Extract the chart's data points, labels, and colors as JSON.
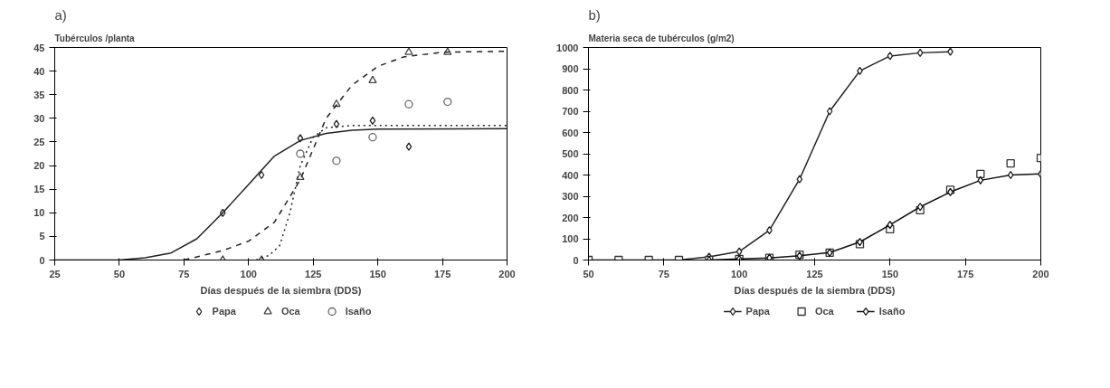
{
  "chart_data": [
    {
      "type": "scatter",
      "title": "a)",
      "ylabel": "Tubérculos /planta",
      "xlabel": "Días después de la siembra (DDS)",
      "xlim": [
        25,
        200
      ],
      "xticks": [
        25,
        50,
        75,
        100,
        125,
        150,
        175,
        200
      ],
      "ylim": [
        0,
        45
      ],
      "yticks": [
        0,
        5,
        10,
        15,
        20,
        25,
        30,
        35,
        40,
        45
      ],
      "grid": false,
      "legend": "bottom",
      "series": [
        {
          "name": "Papa",
          "marker": "diamond",
          "color": "#222222",
          "x": [
            90,
            105,
            120,
            134,
            148,
            162
          ],
          "values": [
            10,
            18,
            25.8,
            28.8,
            29.5,
            24
          ]
        },
        {
          "name": "Oca",
          "marker": "triangle",
          "color": "#444444",
          "x": [
            90,
            105,
            120,
            134,
            148,
            162,
            177
          ],
          "values": [
            0,
            0,
            17.5,
            33,
            38,
            44,
            44
          ]
        },
        {
          "name": "Isaño",
          "marker": "circle",
          "color": "#666666",
          "x": [
            120,
            134,
            148,
            162,
            177
          ],
          "values": [
            22.5,
            21,
            26,
            33,
            33.5
          ]
        },
        {
          "type": "line",
          "line_style": "solid",
          "color": "#222222",
          "x": [
            25,
            50,
            60,
            70,
            80,
            90,
            100,
            105,
            110,
            120,
            130,
            140,
            150,
            200
          ],
          "values": [
            0,
            0,
            0.5,
            1.5,
            4.5,
            10,
            16,
            19,
            22,
            25.3,
            26.8,
            27.5,
            27.7,
            27.8
          ]
        },
        {
          "type": "line",
          "line_style": "dashed",
          "color": "#222222",
          "x": [
            75,
            90,
            100,
            110,
            120,
            130,
            140,
            150,
            160,
            175,
            200
          ],
          "values": [
            0,
            2,
            4,
            8,
            17,
            30,
            37,
            41,
            43,
            44,
            44.2
          ]
        },
        {
          "type": "line",
          "line_style": "dotted",
          "color": "#222222",
          "x": [
            103,
            108,
            112,
            116,
            120,
            125,
            130,
            140,
            200
          ],
          "values": [
            0,
            1,
            3,
            10,
            20,
            26,
            28,
            28.5,
            28.5
          ]
        }
      ]
    },
    {
      "type": "line",
      "title": "b)",
      "ylabel": "Materia seca de tubérculos (g/m2)",
      "xlabel": "Días después de la siembra (DDS)",
      "xlim": [
        50,
        200
      ],
      "xticks": [
        50,
        75,
        100,
        125,
        150,
        175,
        200
      ],
      "ylim": [
        0,
        1000
      ],
      "yticks": [
        0,
        100,
        200,
        300,
        400,
        500,
        600,
        700,
        800,
        900,
        1000
      ],
      "grid": false,
      "legend": "bottom",
      "series": [
        {
          "name": "Papa",
          "marker": "diamond",
          "line_style": "solid",
          "color": "#222222",
          "x": [
            50,
            60,
            70,
            80,
            90,
            100,
            110,
            120,
            130,
            140,
            150,
            160,
            170
          ],
          "values": [
            0,
            0,
            0,
            0,
            15,
            40,
            140,
            380,
            700,
            890,
            960,
            975,
            980
          ]
        },
        {
          "name": "Oca",
          "type": "scatter",
          "marker": "square",
          "color": "#333333",
          "x": [
            50,
            60,
            70,
            80,
            90,
            100,
            110,
            120,
            130,
            140,
            150,
            160,
            170,
            180,
            190,
            200
          ],
          "values": [
            0,
            0,
            0,
            0,
            0,
            5,
            10,
            25,
            35,
            75,
            145,
            235,
            330,
            405,
            455,
            480
          ]
        },
        {
          "name": "Isaño",
          "marker": "diamond",
          "line_style": "solid",
          "color": "#111111",
          "x": [
            90,
            100,
            110,
            120,
            130,
            140,
            150,
            160,
            170,
            180,
            190,
            200
          ],
          "values": [
            0,
            5,
            10,
            20,
            35,
            85,
            165,
            250,
            320,
            375,
            400,
            405
          ]
        }
      ]
    }
  ]
}
